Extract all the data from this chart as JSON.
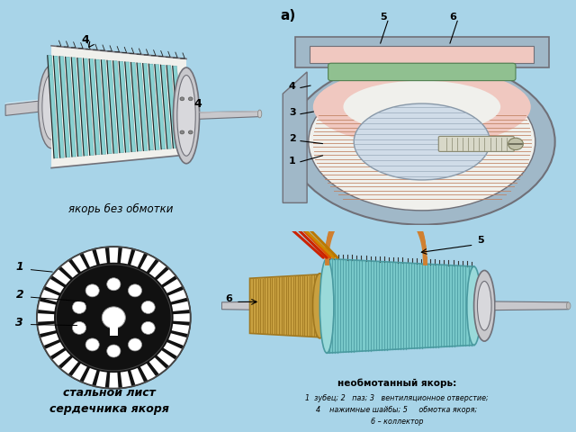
{
  "bg_color": "#A8D4E8",
  "panel_color": "#FFFFFF",
  "top_left_label": "якорь без обмотки",
  "bot_left_label1": "стальной лист",
  "bot_left_label2": "сердечника якоря",
  "bot_right_title": "необмотанный якорь:",
  "bot_right_line1": "1  зубец; 2   паз; 3   вентиляционное отверстие;",
  "bot_right_line2": "4    нажимные шайбы; 5     обмотка якоря;",
  "bot_right_line3": "6 – коллектор",
  "colors": {
    "cyan": "#7ECECE",
    "dark_cyan": "#4A9AA0",
    "pink": "#E8A090",
    "light_pink": "#F0C8C0",
    "gray_light": "#C8C8CC",
    "gray_med": "#A0A0A8",
    "gray_dark": "#707078",
    "orange": "#D08030",
    "orange_dark": "#A06020",
    "gold": "#C8A040",
    "gold_dark": "#A07820",
    "brown_line": "#C08060",
    "red_wire": "#CC2200",
    "black": "#111111",
    "white": "#FFFFFF",
    "off_white": "#F0F0EC",
    "blue_gray": "#A0B8C8",
    "steel_blue": "#8898A8"
  }
}
